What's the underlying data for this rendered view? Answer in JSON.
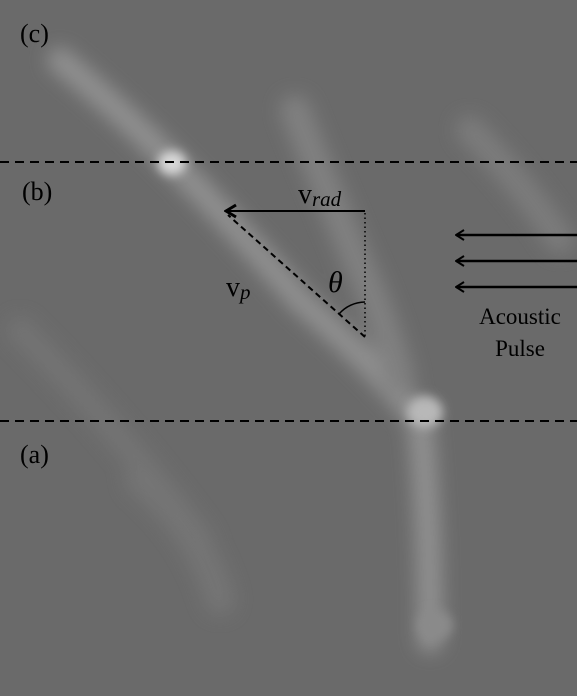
{
  "panels": [
    {
      "label": "(c)"
    },
    {
      "label": "(b)"
    },
    {
      "label": "(a)"
    }
  ],
  "vectors": {
    "radial": {
      "symbol": "v",
      "subscript": "rad"
    },
    "particle": {
      "symbol": "v",
      "subscript": "p"
    }
  },
  "angle": "θ",
  "pulse": {
    "lines": [
      "Acoustic",
      "Pulse"
    ]
  }
}
